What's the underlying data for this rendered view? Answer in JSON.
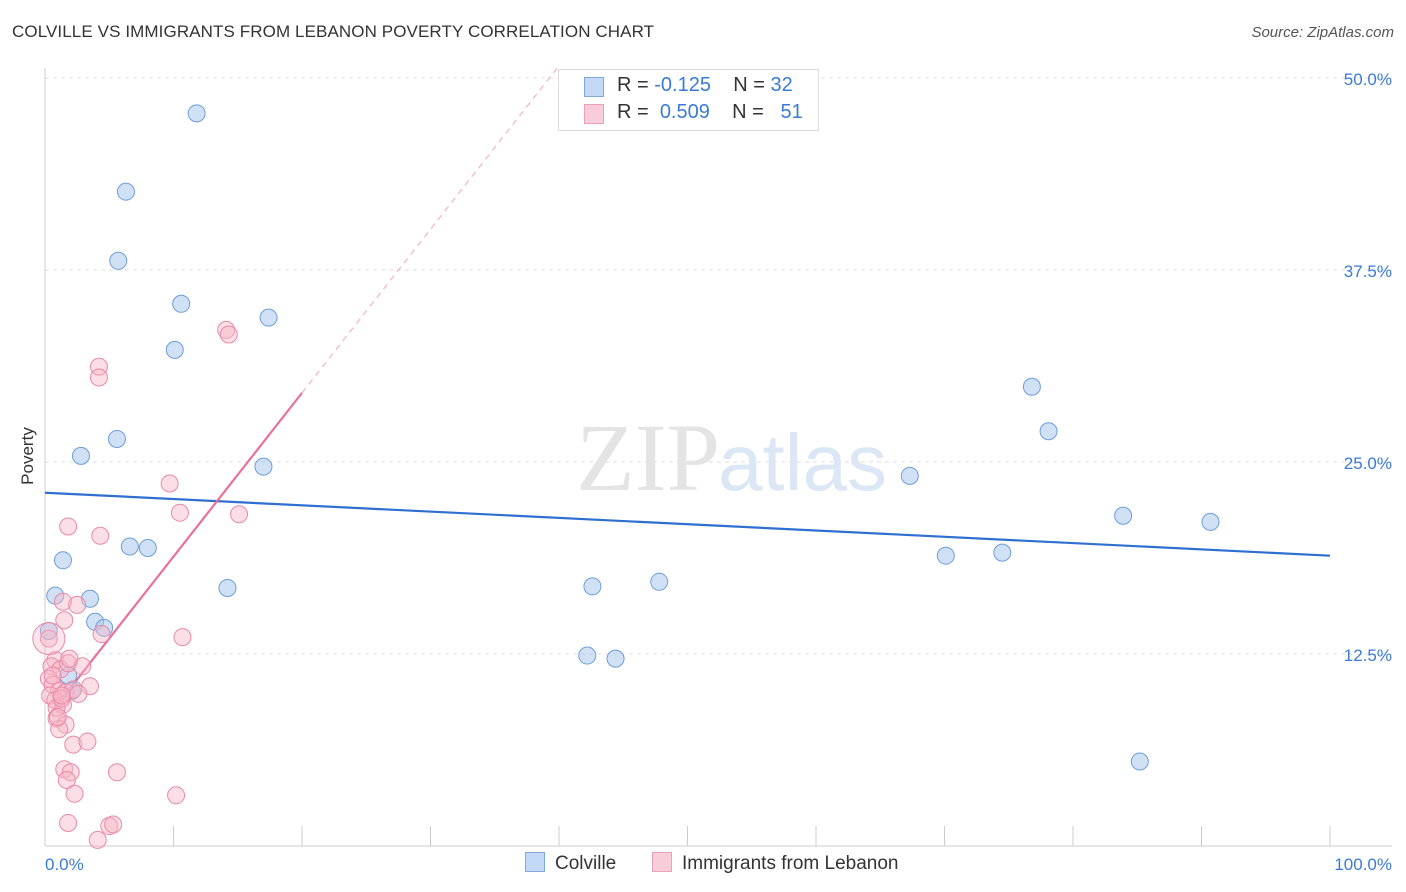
{
  "chart_data": {
    "type": "scatter",
    "title": "COLVILLE VS IMMIGRANTS FROM LEBANON POVERTY CORRELATION CHART",
    "source": "Source: ZipAtlas.com",
    "xlabel": "",
    "ylabel": "Poverty",
    "xlim": [
      0,
      100
    ],
    "ylim": [
      0,
      50
    ],
    "x_tick_labels": [
      "0.0%",
      "100.0%"
    ],
    "y_ticks": [
      12.5,
      25.0,
      37.5,
      50.0
    ],
    "y_tick_labels": [
      "12.5%",
      "25.0%",
      "37.5%",
      "50.0%"
    ],
    "grid": true,
    "watermark": "ZIPatlas",
    "legend_top": [
      {
        "r_label": "R =",
        "r_value": "-0.125",
        "n_label": "N =",
        "n_value": "32"
      },
      {
        "r_label": "R =",
        "r_value": "0.509",
        "n_label": "N =",
        "n_value": "51"
      }
    ],
    "series": [
      {
        "name": "Colville",
        "color": "#aac8ee",
        "stroke": "#6c9ed8",
        "line_color": "#2f6fd0",
        "trend": {
          "x": [
            0,
            100
          ],
          "y": [
            23.0,
            18.9
          ]
        },
        "points": [
          [
            11.8,
            47.7
          ],
          [
            6.3,
            42.6
          ],
          [
            5.7,
            38.1
          ],
          [
            10.6,
            35.3
          ],
          [
            17.4,
            34.4
          ],
          [
            10.1,
            32.3
          ],
          [
            5.6,
            26.5
          ],
          [
            2.8,
            25.4
          ],
          [
            17.0,
            24.7
          ],
          [
            1.4,
            18.6
          ],
          [
            6.6,
            19.5
          ],
          [
            8.0,
            19.4
          ],
          [
            14.2,
            16.8
          ],
          [
            0.8,
            16.3
          ],
          [
            3.5,
            16.1
          ],
          [
            3.9,
            14.6
          ],
          [
            4.6,
            14.2
          ],
          [
            0.3,
            14.0
          ],
          [
            1.8,
            11.1
          ],
          [
            2.1,
            10.1
          ],
          [
            42.2,
            12.4
          ],
          [
            44.4,
            12.2
          ],
          [
            42.6,
            16.9
          ],
          [
            47.8,
            17.2
          ],
          [
            70.1,
            18.9
          ],
          [
            74.5,
            19.1
          ],
          [
            67.3,
            24.1
          ],
          [
            78.1,
            27.0
          ],
          [
            76.8,
            29.9
          ],
          [
            83.9,
            21.5
          ],
          [
            90.7,
            21.1
          ],
          [
            85.2,
            5.5
          ]
        ]
      },
      {
        "name": "Immigrants from Lebanon",
        "color": "#f6b5c8",
        "stroke": "#ea8aa7",
        "line_color": "#e8709a",
        "trend": {
          "x": [
            0.3,
            20
          ],
          "y": [
            8.5,
            29.5
          ]
        },
        "trend_dashed": {
          "x": [
            20,
            40
          ],
          "y": [
            29.5,
            50.8
          ]
        },
        "points": [
          [
            14.1,
            33.6
          ],
          [
            14.3,
            33.3
          ],
          [
            4.2,
            31.2
          ],
          [
            4.2,
            30.5
          ],
          [
            9.7,
            23.6
          ],
          [
            10.5,
            21.7
          ],
          [
            15.1,
            21.6
          ],
          [
            1.8,
            20.8
          ],
          [
            4.3,
            20.2
          ],
          [
            1.4,
            15.9
          ],
          [
            2.5,
            15.7
          ],
          [
            1.5,
            14.7
          ],
          [
            10.7,
            13.6
          ],
          [
            4.4,
            13.8
          ],
          [
            0.3,
            13.5
          ],
          [
            0.8,
            12.1
          ],
          [
            0.5,
            11.7
          ],
          [
            1.2,
            11.5
          ],
          [
            1.8,
            11.9
          ],
          [
            2.9,
            11.7
          ],
          [
            1.9,
            12.2
          ],
          [
            0.3,
            10.9
          ],
          [
            0.6,
            10.5
          ],
          [
            1.1,
            10.1
          ],
          [
            1.6,
            10.0
          ],
          [
            0.4,
            9.8
          ],
          [
            0.8,
            9.5
          ],
          [
            2.2,
            10.2
          ],
          [
            3.5,
            10.4
          ],
          [
            0.9,
            8.3
          ],
          [
            1.4,
            9.2
          ],
          [
            1.6,
            7.9
          ],
          [
            1.1,
            7.6
          ],
          [
            2.2,
            6.6
          ],
          [
            3.3,
            6.8
          ],
          [
            1.5,
            5.0
          ],
          [
            2.0,
            4.8
          ],
          [
            1.7,
            4.3
          ],
          [
            2.3,
            3.4
          ],
          [
            5.6,
            4.8
          ],
          [
            10.2,
            3.3
          ],
          [
            1.8,
            1.5
          ],
          [
            5.0,
            1.3
          ],
          [
            5.3,
            1.4
          ],
          [
            4.1,
            0.4
          ],
          [
            0.9,
            9.0
          ],
          [
            1.3,
            9.6
          ],
          [
            0.6,
            11.1
          ],
          [
            1.0,
            8.4
          ],
          [
            2.6,
            9.9
          ],
          [
            1.3,
            9.8
          ]
        ]
      }
    ]
  },
  "legend_bottom": [
    {
      "label": "Colville"
    },
    {
      "label": "Immigrants from Lebanon"
    }
  ]
}
